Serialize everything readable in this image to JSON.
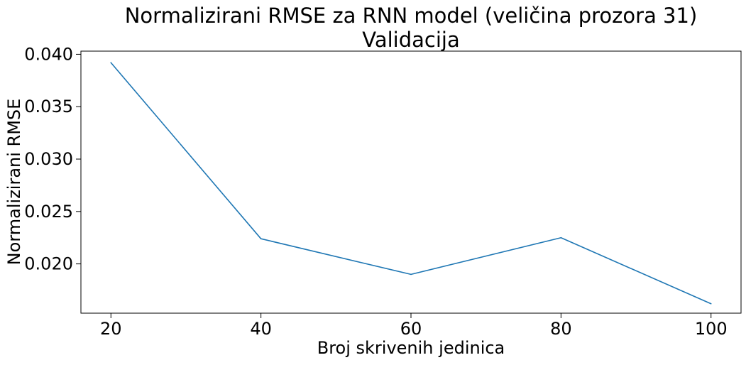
{
  "chart_data": {
    "type": "line",
    "title": "Normalizirani RMSE za RNN model (veličina prozora 31)",
    "subtitle": "Validacija",
    "xlabel": "Broj skrivenih jedinica",
    "ylabel": "Normalizirani RMSE",
    "x": [
      20,
      40,
      60,
      80,
      100
    ],
    "series": [
      {
        "values": [
          0.0392,
          0.0224,
          0.019,
          0.0225,
          0.0162
        ],
        "color": "#1f77b4"
      }
    ],
    "xlim": [
      16,
      104
    ],
    "ylim": [
      0.0153,
      0.0403
    ],
    "xticks": [
      20,
      40,
      60,
      80,
      100
    ],
    "xtick_labels": [
      "20",
      "40",
      "60",
      "80",
      "100"
    ],
    "yticks": [
      0.02,
      0.025,
      0.03,
      0.035,
      0.04
    ],
    "ytick_labels": [
      "0.020",
      "0.025",
      "0.030",
      "0.035",
      "0.040"
    ],
    "grid": false,
    "legend": "none"
  }
}
